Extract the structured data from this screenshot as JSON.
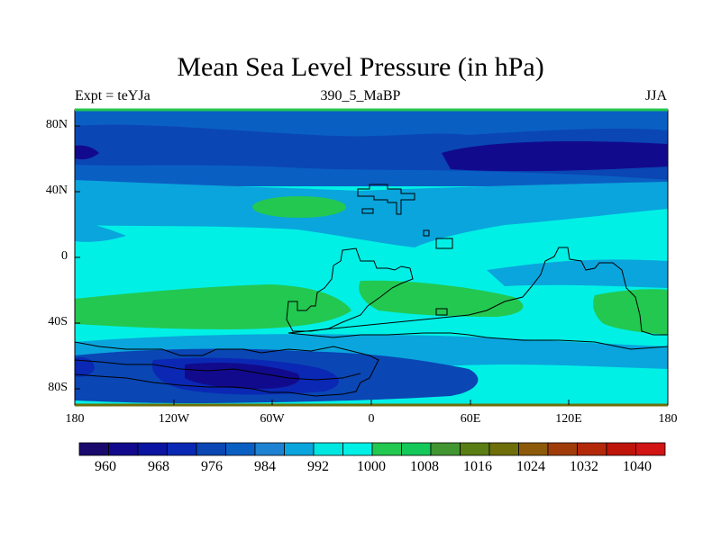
{
  "map": {
    "title": "Mean Sea Level Pressure (in hPa)",
    "experiment_label": "Expt = teYJa",
    "run_label": "390_5_MaBP",
    "season_label": "JJA",
    "lat_ticks": [
      "80N",
      "40N",
      "0",
      "40S",
      "80S"
    ],
    "lon_ticks": [
      "180",
      "120W",
      "60W",
      "0",
      "60E",
      "120E",
      "180"
    ]
  },
  "colorbar": {
    "colors": [
      "#1a0a6e",
      "#120a8c",
      "#0a14a0",
      "#0a28b4",
      "#0a46b4",
      "#0a5fc3",
      "#1e82d2",
      "#0aa5dc",
      "#00e6e1",
      "#00f0e6",
      "#23c850",
      "#14c85a",
      "#419632",
      "#5a7d14",
      "#6e6e0a",
      "#8c5a0a",
      "#a03c0a",
      "#b4280a",
      "#be140a",
      "#d21414"
    ],
    "labels": [
      "960",
      "968",
      "976",
      "984",
      "992",
      "1000",
      "1008",
      "1016",
      "1024",
      "1032",
      "1040"
    ]
  }
}
